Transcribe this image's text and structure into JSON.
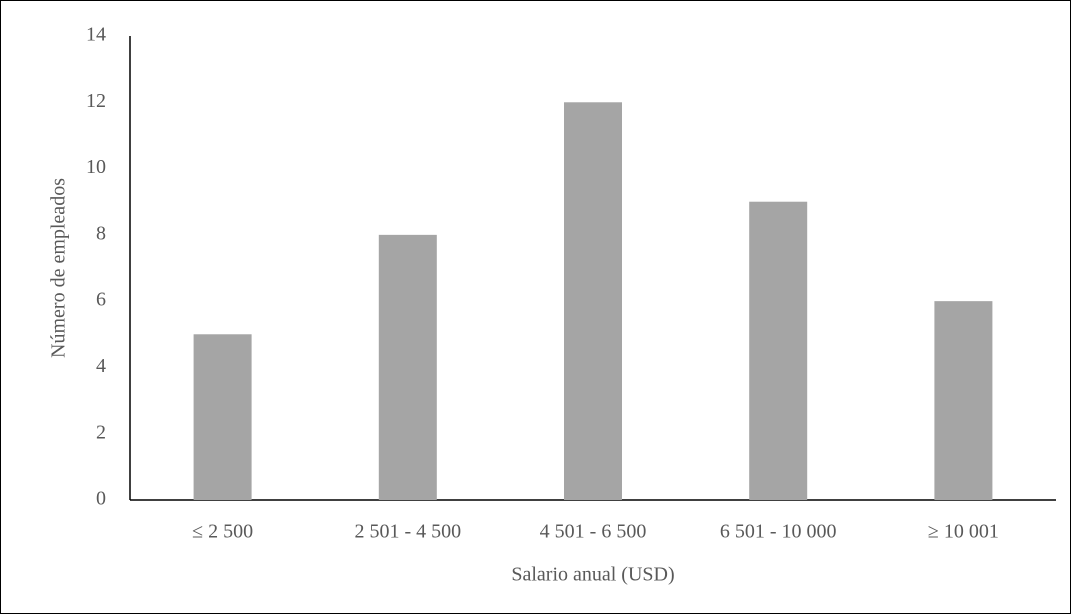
{
  "chart_data": {
    "type": "bar",
    "x_label": "Salario anual (USD)",
    "y_label": "Número de empleados",
    "categories": [
      "≤ 2 500",
      "2 501 - 4 500",
      "4 501 - 6 500",
      "6 501 - 10 000",
      "≥ 10 001"
    ],
    "values": [
      5,
      8,
      12,
      9,
      6
    ],
    "color": "#a5a5a5",
    "ylim": [
      0,
      14
    ],
    "yticks": [
      0,
      2,
      4,
      6,
      8,
      10,
      12,
      14
    ],
    "grid": false
  }
}
